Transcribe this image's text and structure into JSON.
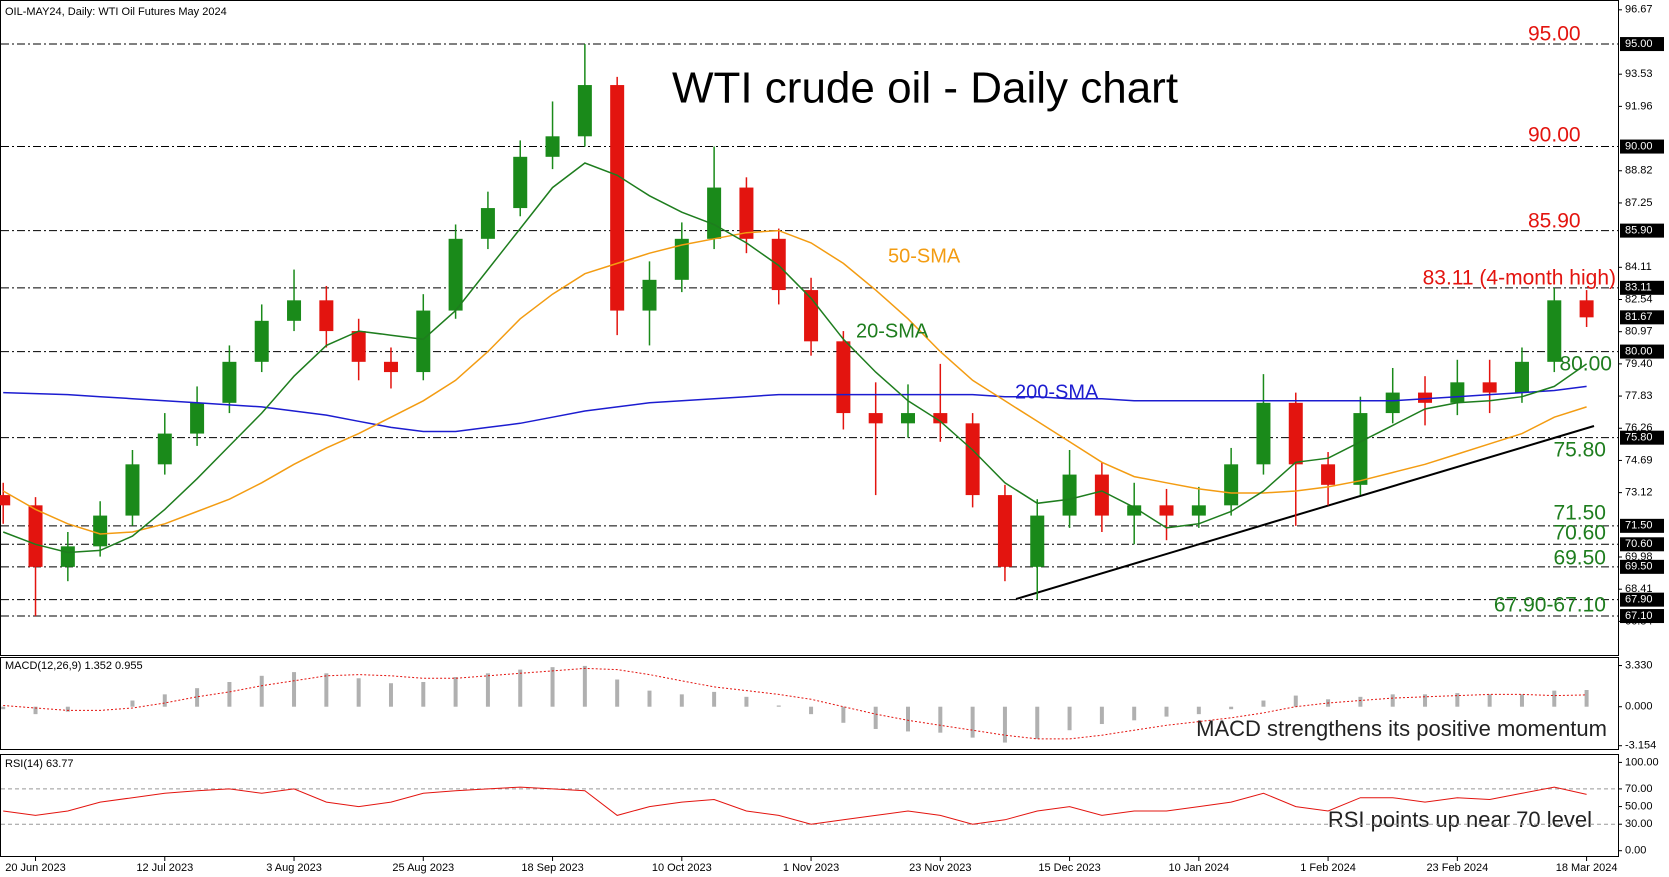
{
  "chart_data": [
    {
      "type": "candlestick",
      "header": "OIL-MAY24, Daily:  WTI Oil Futures May 2024",
      "title": "WTI crude oil - Daily chart",
      "categories": [
        null,
        "20 Jun 2023",
        null,
        null,
        null,
        "12 Jul 2023",
        null,
        null,
        null,
        "3 Aug 2023",
        null,
        null,
        null,
        "25 Aug 2023",
        null,
        null,
        null,
        "18 Sep 2023",
        null,
        null,
        null,
        "10 Oct 2023",
        null,
        null,
        null,
        "1 Nov 2023",
        null,
        null,
        null,
        "23 Nov 2023",
        null,
        null,
        null,
        "15 Dec 2023",
        null,
        null,
        null,
        "10 Jan 2024",
        null,
        null,
        null,
        "1 Feb 2024",
        null,
        null,
        null,
        "23 Feb 2024",
        null,
        null,
        null,
        "18 Mar 2024"
      ],
      "up_color": "#1a8a1a",
      "down_color": "#e3140f",
      "candles": [
        [
          73.0,
          73.6,
          71.6,
          72.5
        ],
        [
          72.5,
          72.9,
          67.1,
          69.5
        ],
        [
          69.5,
          71.2,
          68.8,
          70.5
        ],
        [
          70.5,
          72.7,
          70.0,
          72.0
        ],
        [
          72.0,
          75.2,
          71.5,
          74.5
        ],
        [
          74.5,
          77.0,
          74.0,
          76.0
        ],
        [
          76.0,
          78.3,
          75.4,
          77.5
        ],
        [
          77.5,
          80.3,
          77.0,
          79.5
        ],
        [
          79.5,
          82.3,
          79.0,
          81.5
        ],
        [
          81.5,
          84.0,
          81.0,
          82.5
        ],
        [
          82.5,
          83.2,
          80.2,
          81.0
        ],
        [
          81.0,
          81.6,
          78.6,
          79.5
        ],
        [
          79.5,
          80.2,
          78.2,
          79.0
        ],
        [
          79.0,
          82.8,
          78.6,
          82.0
        ],
        [
          82.0,
          86.2,
          81.6,
          85.5
        ],
        [
          85.5,
          87.8,
          85.0,
          87.0
        ],
        [
          87.0,
          90.3,
          86.6,
          89.5
        ],
        [
          89.5,
          92.2,
          88.9,
          90.5
        ],
        [
          90.5,
          95.0,
          90.0,
          93.0
        ],
        [
          93.0,
          93.4,
          80.8,
          82.0
        ],
        [
          82.0,
          84.4,
          80.3,
          83.5
        ],
        [
          83.5,
          86.3,
          82.9,
          85.5
        ],
        [
          85.5,
          90.0,
          85.0,
          88.0
        ],
        [
          88.0,
          88.5,
          84.8,
          85.5
        ],
        [
          85.5,
          86.0,
          82.3,
          83.0
        ],
        [
          83.0,
          83.6,
          79.8,
          80.5
        ],
        [
          80.5,
          81.0,
          76.2,
          77.0
        ],
        [
          77.0,
          78.5,
          73.0,
          76.5
        ],
        [
          76.5,
          78.4,
          75.8,
          77.0
        ],
        [
          77.0,
          79.4,
          75.6,
          76.5
        ],
        [
          76.5,
          77.0,
          72.4,
          73.0
        ],
        [
          73.0,
          73.5,
          68.8,
          69.5
        ],
        [
          69.5,
          72.8,
          67.9,
          72.0
        ],
        [
          72.0,
          75.2,
          71.4,
          74.0
        ],
        [
          74.0,
          74.6,
          71.2,
          72.0
        ],
        [
          72.0,
          73.6,
          70.6,
          72.5
        ],
        [
          72.5,
          73.3,
          70.8,
          72.0
        ],
        [
          72.0,
          73.4,
          71.4,
          72.5
        ],
        [
          72.5,
          75.3,
          72.0,
          74.5
        ],
        [
          74.5,
          78.9,
          74.0,
          77.5
        ],
        [
          77.5,
          78.0,
          71.5,
          74.5
        ],
        [
          74.5,
          75.1,
          72.5,
          73.5
        ],
        [
          73.5,
          77.8,
          73.0,
          77.0
        ],
        [
          77.0,
          79.2,
          76.5,
          78.0
        ],
        [
          78.0,
          78.8,
          76.4,
          77.5
        ],
        [
          77.5,
          79.6,
          76.9,
          78.5
        ],
        [
          78.5,
          79.6,
          77.0,
          78.0
        ],
        [
          78.0,
          80.2,
          77.5,
          79.5
        ],
        [
          79.5,
          83.11,
          79.0,
          82.5
        ],
        [
          82.5,
          83.0,
          81.2,
          81.67
        ]
      ],
      "series": [
        {
          "name": "200-SMA",
          "color": "#1c1cd0",
          "values": [
            78.0,
            77.95,
            77.9,
            77.8,
            77.7,
            77.6,
            77.5,
            77.4,
            77.3,
            77.1,
            76.9,
            76.6,
            76.3,
            76.1,
            76.1,
            76.3,
            76.5,
            76.8,
            77.1,
            77.3,
            77.5,
            77.6,
            77.7,
            77.8,
            77.9,
            77.9,
            77.9,
            77.9,
            77.9,
            77.9,
            77.9,
            77.8,
            77.8,
            77.7,
            77.7,
            77.6,
            77.6,
            77.6,
            77.6,
            77.6,
            77.6,
            77.6,
            77.6,
            77.6,
            77.7,
            77.8,
            77.9,
            78.0,
            78.1,
            78.3
          ]
        },
        {
          "name": "50-SMA",
          "color": "#f39c12",
          "values": [
            73.2,
            72.3,
            71.6,
            71.1,
            71.2,
            71.6,
            72.2,
            72.8,
            73.6,
            74.5,
            75.3,
            76.0,
            76.8,
            77.6,
            78.6,
            80.0,
            81.6,
            82.8,
            83.8,
            84.3,
            84.8,
            85.2,
            85.5,
            85.8,
            85.9,
            85.3,
            84.3,
            83.0,
            81.6,
            80.0,
            78.6,
            77.6,
            76.6,
            75.6,
            74.6,
            73.9,
            73.6,
            73.3,
            73.1,
            73.1,
            73.2,
            73.4,
            73.7,
            74.1,
            74.5,
            75.0,
            75.5,
            76.0,
            76.8,
            77.3
          ]
        },
        {
          "name": "20-SMA",
          "color": "#1e7d1e",
          "values": [
            71.2,
            70.6,
            70.2,
            70.3,
            71.0,
            72.3,
            73.8,
            75.4,
            77.0,
            78.8,
            80.3,
            81.0,
            80.8,
            80.6,
            82.0,
            84.0,
            86.0,
            88.0,
            89.2,
            88.6,
            87.6,
            86.8,
            86.2,
            85.3,
            84.2,
            82.6,
            80.6,
            79.0,
            77.6,
            76.6,
            75.2,
            73.6,
            72.6,
            72.8,
            73.2,
            72.4,
            71.4,
            71.6,
            72.2,
            73.2,
            74.6,
            74.8,
            75.6,
            76.4,
            77.2,
            77.5,
            77.6,
            77.8,
            78.3,
            79.4
          ]
        }
      ],
      "ylim": [
        65.2,
        97.1
      ],
      "yticks": [
        96.67,
        93.53,
        91.96,
        88.82,
        87.25,
        84.11,
        82.54,
        80.97,
        {
          "value": 79.4,
          "label": "79.40"
        },
        77.83,
        76.26,
        74.69,
        73.12,
        69.98,
        68.41,
        66.84
      ],
      "levels": [
        {
          "value": 95,
          "label": "95.00"
        },
        {
          "value": 90,
          "label": "90.00"
        },
        {
          "value": 85.9,
          "label": "85.90"
        },
        {
          "value": 83.11,
          "label": "83.11"
        },
        {
          "value": 80,
          "label": "80.00"
        },
        {
          "value": 75.8,
          "label": "75.80"
        },
        {
          "value": 71.5,
          "label": "71.50"
        },
        {
          "value": 70.6,
          "label": "70.60"
        },
        {
          "value": 69.5,
          "label": "69.50"
        },
        {
          "value": 67.9,
          "label": "67.90"
        },
        {
          "value": 67.1,
          "label": "67.10"
        }
      ],
      "price_marker": {
        "value": 81.67,
        "label": "81.67"
      },
      "annotations": [
        {
          "text": "95.00",
          "color": "#e3140f"
        },
        {
          "text": "90.00",
          "color": "#e3140f"
        },
        {
          "text": "85.90",
          "color": "#e3140f"
        },
        {
          "text": "83.11 (4-month high)",
          "color": "#e3140f"
        },
        {
          "text": "80.00",
          "color": "#1e7d1e"
        },
        {
          "text": "75.80",
          "color": "#1e7d1e"
        },
        {
          "text": "71.50",
          "color": "#1e7d1e"
        },
        {
          "text": "70.60",
          "color": "#1e7d1e"
        },
        {
          "text": "69.50",
          "color": "#1e7d1e"
        },
        {
          "text": "67.90-67.10",
          "color": "#1e7d1e"
        }
      ]
    },
    {
      "type": "macd",
      "title": "MACD(12,26,9) 1.352 0.955",
      "annotation": "MACD strengthens its positive momentum",
      "series": [
        {
          "color": "#b0b0b0",
          "values": [
            -0.2,
            -0.6,
            -0.4,
            0.0,
            0.5,
            1.0,
            1.5,
            2.0,
            2.5,
            2.8,
            2.7,
            2.3,
            1.9,
            2.0,
            2.4,
            2.7,
            3.0,
            3.2,
            3.3,
            2.2,
            1.3,
            1.0,
            1.2,
            0.8,
            0.1,
            -0.6,
            -1.3,
            -1.8,
            -2.0,
            -2.1,
            -2.5,
            -2.9,
            -2.6,
            -1.9,
            -1.4,
            -1.1,
            -0.8,
            -0.6,
            -0.2,
            0.5,
            0.9,
            0.6,
            0.8,
            1.0,
            1.0,
            1.1,
            1.0,
            1.0,
            1.3,
            1.352
          ]
        },
        {
          "color": "#e3140f",
          "values": [
            0.1,
            -0.1,
            -0.3,
            -0.3,
            -0.1,
            0.3,
            0.8,
            1.2,
            1.7,
            2.1,
            2.5,
            2.6,
            2.5,
            2.3,
            2.3,
            2.5,
            2.7,
            2.9,
            3.1,
            3.0,
            2.6,
            2.1,
            1.6,
            1.3,
            1.0,
            0.6,
            0.0,
            -0.6,
            -1.1,
            -1.5,
            -1.9,
            -2.3,
            -2.6,
            -2.6,
            -2.3,
            -1.9,
            -1.5,
            -1.2,
            -0.9,
            -0.5,
            0.0,
            0.3,
            0.5,
            0.7,
            0.8,
            0.9,
            1.0,
            1.0,
            0.9,
            0.955
          ]
        }
      ],
      "ylim": [
        -3.42,
        3.94
      ],
      "yticks": [
        {
          "value": 3.33,
          "label": "3.330"
        },
        {
          "value": 0,
          "label": "0.000"
        },
        -3.154
      ]
    },
    {
      "type": "line",
      "title": "RSI(14) 63.77",
      "annotation": "RSI points up near 70 level",
      "series": [
        {
          "color": "#e3140f",
          "values": [
            45,
            40,
            45,
            55,
            60,
            65,
            68,
            70,
            65,
            70,
            55,
            50,
            55,
            65,
            68,
            70,
            72,
            70,
            68,
            40,
            50,
            55,
            58,
            45,
            40,
            30,
            35,
            40,
            45,
            40,
            30,
            35,
            45,
            50,
            40,
            45,
            45,
            50,
            55,
            65,
            50,
            45,
            60,
            60,
            55,
            60,
            58,
            65,
            72,
            63.77
          ]
        }
      ],
      "ylim": [
        -6,
        108.4
      ],
      "yticks": [
        {
          "value": 100,
          "label": "100.00"
        },
        {
          "value": 70,
          "label": "70.00"
        },
        {
          "value": 50,
          "label": "50.00"
        },
        {
          "value": 30,
          "label": "30.00"
        },
        {
          "value": 0,
          "label": "0.00"
        }
      ],
      "dashed_levels": [
        70,
        30
      ]
    }
  ]
}
